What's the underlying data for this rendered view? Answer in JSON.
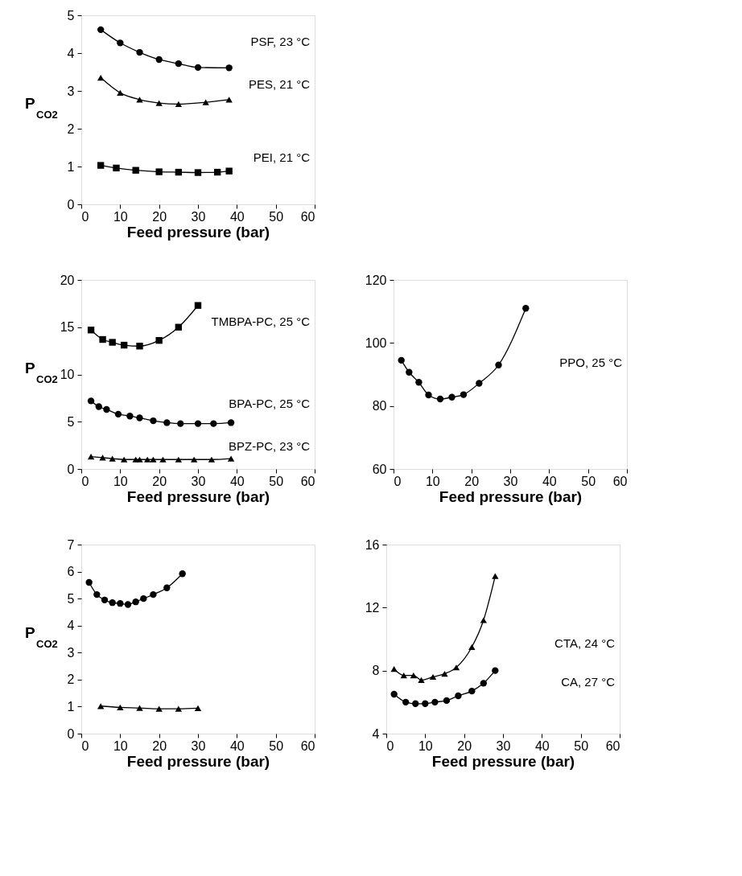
{
  "chart_data": [
    {
      "type": "line",
      "xlabel": "Feed pressure (bar)",
      "ylabel": "P$_{CO2}$",
      "xlim": [
        0,
        60
      ],
      "xticks": [
        0,
        10,
        20,
        30,
        40,
        50,
        60
      ],
      "ylim": [
        0,
        5
      ],
      "yticks": [
        0,
        1,
        2,
        3,
        4,
        5
      ],
      "series": [
        {
          "name": "PSF, 23 °C",
          "color": "#000000",
          "marker": "circle",
          "x": [
            5,
            10,
            15,
            20,
            25,
            30,
            38
          ],
          "values": [
            4.62,
            4.27,
            4.02,
            3.83,
            3.72,
            3.62,
            3.61
          ]
        },
        {
          "name": "PES, 21 °C",
          "color": "#000000",
          "marker": "triangle",
          "x": [
            5,
            10,
            15,
            20,
            25,
            32,
            38
          ],
          "values": [
            3.35,
            2.95,
            2.77,
            2.68,
            2.65,
            2.7,
            2.77
          ]
        },
        {
          "name": "PEI, 21 °C",
          "color": "#000000",
          "marker": "square",
          "x": [
            5,
            9,
            14,
            20,
            25,
            30,
            35,
            38
          ],
          "values": [
            1.03,
            0.96,
            0.9,
            0.86,
            0.85,
            0.84,
            0.85,
            0.88
          ]
        }
      ]
    },
    {
      "type": "line",
      "xlabel": "Feed pressure (bar)",
      "ylabel": "P$_{CO2}$",
      "xlim": [
        0,
        60
      ],
      "xticks": [
        0,
        10,
        20,
        30,
        40,
        50,
        60
      ],
      "ylim": [
        0,
        20
      ],
      "yticks": [
        0,
        5,
        10,
        15,
        20
      ],
      "series": [
        {
          "name": "TMBPA-PC, 25 °C",
          "color": "#000000",
          "marker": "square",
          "x": [
            2.5,
            5.5,
            8,
            11,
            15,
            20,
            25,
            30
          ],
          "values": [
            14.7,
            13.7,
            13.4,
            13.1,
            13.0,
            13.6,
            15.0,
            17.3
          ]
        },
        {
          "name": "BPA-PC, 25 °C",
          "color": "#000000",
          "marker": "circle",
          "x": [
            2.5,
            4.5,
            6.5,
            9.5,
            12.5,
            15,
            18.5,
            22,
            25.5,
            30,
            34,
            38.5
          ],
          "values": [
            7.2,
            6.6,
            6.3,
            5.8,
            5.6,
            5.4,
            5.1,
            4.9,
            4.8,
            4.8,
            4.8,
            4.9
          ]
        },
        {
          "name": "BPZ-PC, 23 °C",
          "color": "#000000",
          "marker": "triangle",
          "x": [
            2.5,
            5.5,
            8,
            11,
            14,
            15,
            17,
            18.5,
            21,
            25,
            29,
            33.5,
            38.5
          ],
          "values": [
            1.3,
            1.2,
            1.1,
            1.0,
            1.0,
            1.0,
            1.0,
            1.0,
            1.0,
            1.0,
            1.0,
            1.0,
            1.1
          ]
        }
      ]
    },
    {
      "type": "line",
      "xlabel": "Feed pressure (bar)",
      "xlim": [
        0,
        60
      ],
      "xticks": [
        0,
        10,
        20,
        30,
        40,
        50,
        60
      ],
      "ylim": [
        60,
        120
      ],
      "yticks": [
        60,
        80,
        100,
        120
      ],
      "series": [
        {
          "name": "PPO, 25 °C",
          "color": "#000000",
          "marker": "circle",
          "x": [
            2,
            4,
            6.5,
            9,
            12,
            15,
            18,
            22,
            27,
            34
          ],
          "values": [
            94.5,
            90.7,
            87.5,
            83.5,
            82.2,
            82.8,
            83.6,
            87.2,
            93,
            111
          ]
        }
      ]
    },
    {
      "type": "line",
      "xlabel": "Feed pressure (bar)",
      "ylabel": "P$_{CO2}$",
      "xlim": [
        0,
        60
      ],
      "xticks": [
        0,
        10,
        20,
        30,
        40,
        50,
        60
      ],
      "ylim": [
        0,
        7
      ],
      "yticks": [
        0,
        1,
        2,
        3,
        4,
        5,
        6,
        7
      ],
      "series": [
        {
          "color": "#000000",
          "marker": "circle",
          "x": [
            2,
            4,
            6,
            8,
            10,
            12,
            14,
            16,
            18.5,
            22,
            26
          ],
          "values": [
            5.6,
            5.15,
            4.95,
            4.85,
            4.82,
            4.78,
            4.88,
            5.0,
            5.15,
            5.4,
            5.92
          ]
        },
        {
          "color": "#000000",
          "marker": "triangle",
          "x": [
            5,
            10,
            15,
            20,
            25,
            30
          ],
          "values": [
            1.02,
            0.97,
            0.95,
            0.92,
            0.92,
            0.94
          ]
        }
      ]
    },
    {
      "type": "line",
      "xlabel": "Feed pressure (bar)",
      "xlim": [
        0,
        60
      ],
      "xticks": [
        0,
        10,
        20,
        30,
        40,
        50,
        60
      ],
      "ylim": [
        4,
        16
      ],
      "yticks": [
        4,
        8,
        12,
        16
      ],
      "series": [
        {
          "name": "CTA, 24 °C",
          "color": "#000000",
          "marker": "triangle",
          "x": [
            2,
            4.5,
            7,
            9,
            12,
            15,
            18,
            22,
            25,
            28
          ],
          "values": [
            8.1,
            7.7,
            7.7,
            7.4,
            7.6,
            7.8,
            8.2,
            9.5,
            11.2,
            14.0
          ]
        },
        {
          "name": "CA, 27 °C",
          "color": "#000000",
          "marker": "circle",
          "x": [
            2,
            5,
            7.5,
            10,
            12.5,
            15.5,
            18.5,
            22,
            25,
            28
          ],
          "values": [
            6.5,
            6.0,
            5.9,
            5.9,
            6.0,
            6.1,
            6.4,
            6.7,
            7.2,
            8.0
          ]
        }
      ]
    }
  ]
}
